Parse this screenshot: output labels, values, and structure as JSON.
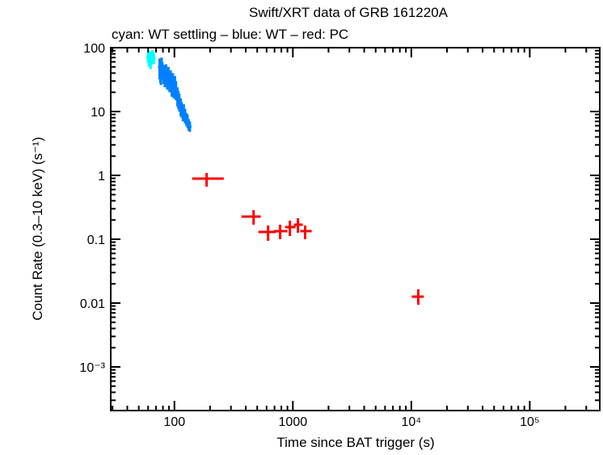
{
  "chart_data": {
    "type": "scatter",
    "title": "Swift/XRT data of GRB 161220A",
    "subtitle": "cyan: WT settling – blue: WT – red: PC",
    "xlabel": "Time since BAT trigger (s)",
    "ylabel": "Count Rate (0.3–10 keV) (s⁻¹)",
    "xscale": "log",
    "yscale": "log",
    "xlim": [
      29,
      390000
    ],
    "ylim": [
      0.0001,
      100
    ],
    "grid": false,
    "x_ticks": [
      {
        "v": 100,
        "label": "100"
      },
      {
        "v": 1000,
        "label": "1000"
      },
      {
        "v": 10000,
        "label": "10⁴"
      },
      {
        "v": 100000,
        "label": "10⁵"
      }
    ],
    "y_ticks": [
      {
        "v": 100,
        "label": "100"
      },
      {
        "v": 10,
        "label": "10"
      },
      {
        "v": 1,
        "label": "1"
      },
      {
        "v": 0.1,
        "label": "0.1"
      },
      {
        "v": 0.01,
        "label": "0.01"
      },
      {
        "v": 0.001,
        "label": "10⁻³"
      }
    ],
    "series": [
      {
        "color": "#00ffff",
        "points": [
          [
            60,
            70,
            58,
            84
          ],
          [
            61,
            62,
            50,
            76
          ],
          [
            62,
            75,
            62,
            88
          ],
          [
            63,
            58,
            46,
            70
          ],
          [
            64,
            66,
            54,
            79
          ],
          [
            65,
            80,
            66,
            92
          ],
          [
            66,
            72,
            60,
            86
          ],
          [
            67,
            68,
            55,
            82
          ]
        ]
      },
      {
        "color": "#0080ff",
        "points": [
          [
            75,
            50,
            32,
            68
          ],
          [
            76,
            42,
            28,
            58
          ],
          [
            77,
            38,
            26,
            52
          ],
          [
            78,
            55,
            40,
            70
          ],
          [
            79,
            45,
            32,
            60
          ],
          [
            81,
            40,
            27,
            54
          ],
          [
            83,
            36,
            24,
            50
          ],
          [
            85,
            42,
            30,
            55
          ],
          [
            87,
            34,
            22,
            46
          ],
          [
            89,
            38,
            26,
            50
          ],
          [
            91,
            30,
            20,
            40
          ],
          [
            93,
            33,
            22,
            44
          ],
          [
            95,
            26,
            17,
            36
          ],
          [
            97,
            29,
            19,
            40
          ],
          [
            99,
            24,
            16,
            33
          ],
          [
            101,
            27,
            18,
            36
          ],
          [
            103,
            22,
            15,
            30
          ],
          [
            106,
            18,
            12,
            24
          ],
          [
            108,
            16,
            11,
            21
          ],
          [
            110,
            14,
            10,
            19
          ],
          [
            113,
            12,
            8.5,
            16
          ],
          [
            115,
            11,
            8,
            14
          ],
          [
            118,
            9.5,
            7,
            12.5
          ],
          [
            120,
            10,
            7.5,
            13
          ],
          [
            123,
            8.5,
            6.5,
            11
          ],
          [
            126,
            7.5,
            6,
            9.5
          ],
          [
            129,
            7,
            5.5,
            9
          ],
          [
            132,
            6.2,
            5,
            7.6
          ],
          [
            135,
            5.8,
            4.8,
            7
          ]
        ]
      },
      {
        "color": "#ff0000",
        "points": [
          [
            187,
            0.89,
            0.665,
            1.09,
            141,
            261
          ],
          [
            466,
            0.226,
            0.169,
            0.286,
            368,
            536
          ],
          [
            618,
            0.13,
            0.0944,
            0.164,
            512,
            722
          ],
          [
            781,
            0.134,
            0.1,
            0.169,
            689,
            900
          ],
          [
            944,
            0.155,
            0.112,
            0.195,
            859,
            1054
          ],
          [
            1104,
            0.169,
            0.126,
            0.213,
            1020,
            1213
          ],
          [
            1270,
            0.134,
            0.1,
            0.164,
            1156,
            1442
          ],
          [
            11450,
            0.0126,
            0.0094,
            0.0164,
            10090,
            12760
          ]
        ]
      }
    ]
  }
}
